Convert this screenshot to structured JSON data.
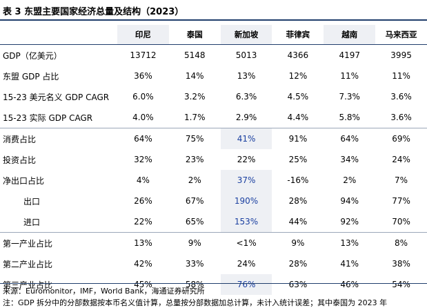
{
  "title": "表 3  东盟主要国家经济总量及结构（2023）",
  "columns": [
    "印尼",
    "泰国",
    "新加坡",
    "菲律宾",
    "越南",
    "马来西亚"
  ],
  "rows": [
    {
      "label": "GDP（亿美元）",
      "values": [
        "13712",
        "5148",
        "5013",
        "4366",
        "4197",
        "3995"
      ]
    },
    {
      "label": "东盟 GDP 占比",
      "values": [
        "36%",
        "14%",
        "13%",
        "12%",
        "11%",
        "11%"
      ]
    },
    {
      "label": "15-23  美元名义 GDP CAGR",
      "values": [
        "6.0%",
        "3.2%",
        "6.3%",
        "4.5%",
        "7.3%",
        "3.6%"
      ]
    },
    {
      "label": "15-23  实际 GDP CAGR",
      "values": [
        "4.0%",
        "1.7%",
        "2.9%",
        "4.4%",
        "5.8%",
        "3.6%"
      ]
    },
    {
      "label": "消费占比",
      "values": [
        "64%",
        "75%",
        "41%",
        "91%",
        "64%",
        "69%"
      ]
    },
    {
      "label": "投资占比",
      "values": [
        "32%",
        "23%",
        "22%",
        "25%",
        "34%",
        "24%"
      ]
    },
    {
      "label": "净出口占比",
      "values": [
        "4%",
        "2%",
        "37%",
        "-16%",
        "2%",
        "7%"
      ]
    },
    {
      "label": "出口",
      "values": [
        "26%",
        "67%",
        "190%",
        "28%",
        "94%",
        "77%"
      ]
    },
    {
      "label": "进口",
      "values": [
        "22%",
        "65%",
        "153%",
        "44%",
        "92%",
        "70%"
      ]
    },
    {
      "label": "第一产业占比",
      "values": [
        "13%",
        "9%",
        "<1%",
        "9%",
        "13%",
        "8%"
      ]
    },
    {
      "label": "第二产业占比",
      "values": [
        "42%",
        "33%",
        "24%",
        "28%",
        "41%",
        "38%"
      ]
    },
    {
      "label": "第三产业占比",
      "values": [
        "45%",
        "58%",
        "76%",
        "63%",
        "46%",
        "54%"
      ]
    }
  ],
  "notes": {
    "source": "来源：Euromonitor，IMF，World Bank，海通证券研究所",
    "note": "注：GDP 拆分中的分部数据按本币名义值计算，总量按分部数据加总计算，未计入统计误差；其中泰国为 2023 年"
  }
}
